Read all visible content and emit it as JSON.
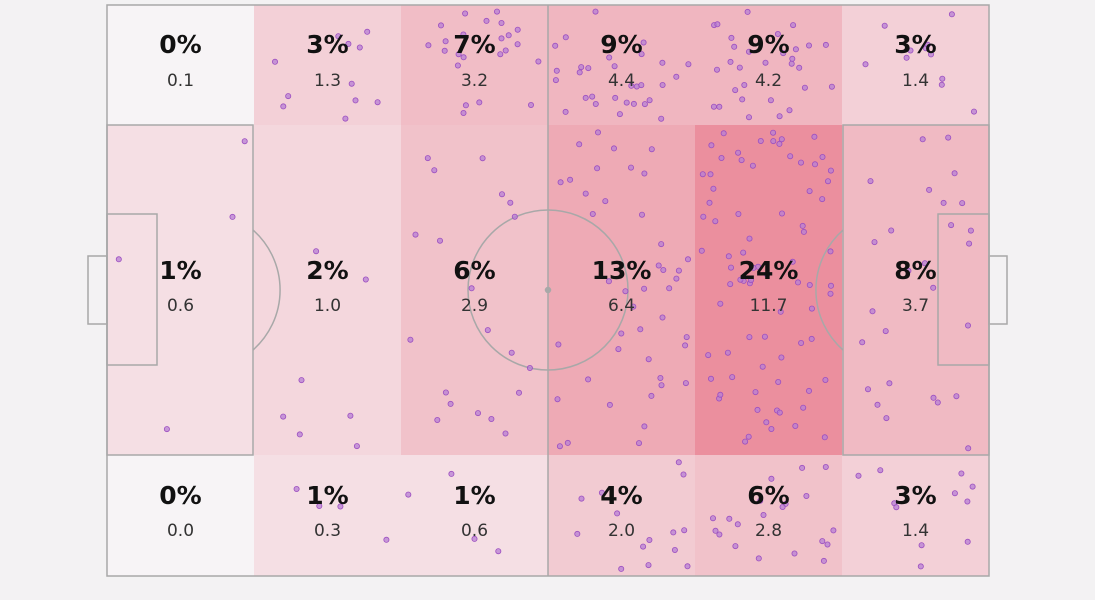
{
  "chart_data": {
    "type": "heatmap",
    "description_labels": {},
    "columns": 6,
    "rows": 3,
    "cells": [
      [
        {
          "pct": "0%",
          "value": "0.1",
          "fraction": 0.0
        },
        {
          "pct": "3%",
          "value": "1.3",
          "fraction": 0.03
        },
        {
          "pct": "7%",
          "value": "3.2",
          "fraction": 0.07
        },
        {
          "pct": "9%",
          "value": "4.4",
          "fraction": 0.09
        },
        {
          "pct": "9%",
          "value": "4.2",
          "fraction": 0.09
        },
        {
          "pct": "3%",
          "value": "1.4",
          "fraction": 0.03
        }
      ],
      [
        {
          "pct": "1%",
          "value": "0.6",
          "fraction": 0.01
        },
        {
          "pct": "2%",
          "value": "1.0",
          "fraction": 0.02
        },
        {
          "pct": "6%",
          "value": "2.9",
          "fraction": 0.06
        },
        {
          "pct": "13%",
          "value": "6.4",
          "fraction": 0.13
        },
        {
          "pct": "24%",
          "value": "11.7",
          "fraction": 0.24
        },
        {
          "pct": "8%",
          "value": "3.7",
          "fraction": 0.08
        }
      ],
      [
        {
          "pct": "0%",
          "value": "0.0",
          "fraction": 0.0
        },
        {
          "pct": "1%",
          "value": "0.3",
          "fraction": 0.01
        },
        {
          "pct": "1%",
          "value": "0.6",
          "fraction": 0.01
        },
        {
          "pct": "4%",
          "value": "2.0",
          "fraction": 0.04
        },
        {
          "pct": "6%",
          "value": "2.8",
          "fraction": 0.06
        },
        {
          "pct": "3%",
          "value": "1.4",
          "fraction": 0.03
        }
      ]
    ],
    "colors": {
      "heat_max": "#eb8f9e",
      "heat_min": "#f7f4f6",
      "pitch_lines": "#a8a8a8",
      "dots_fill": "#b77fd4",
      "dots_stroke": "#9c4fc0"
    }
  }
}
